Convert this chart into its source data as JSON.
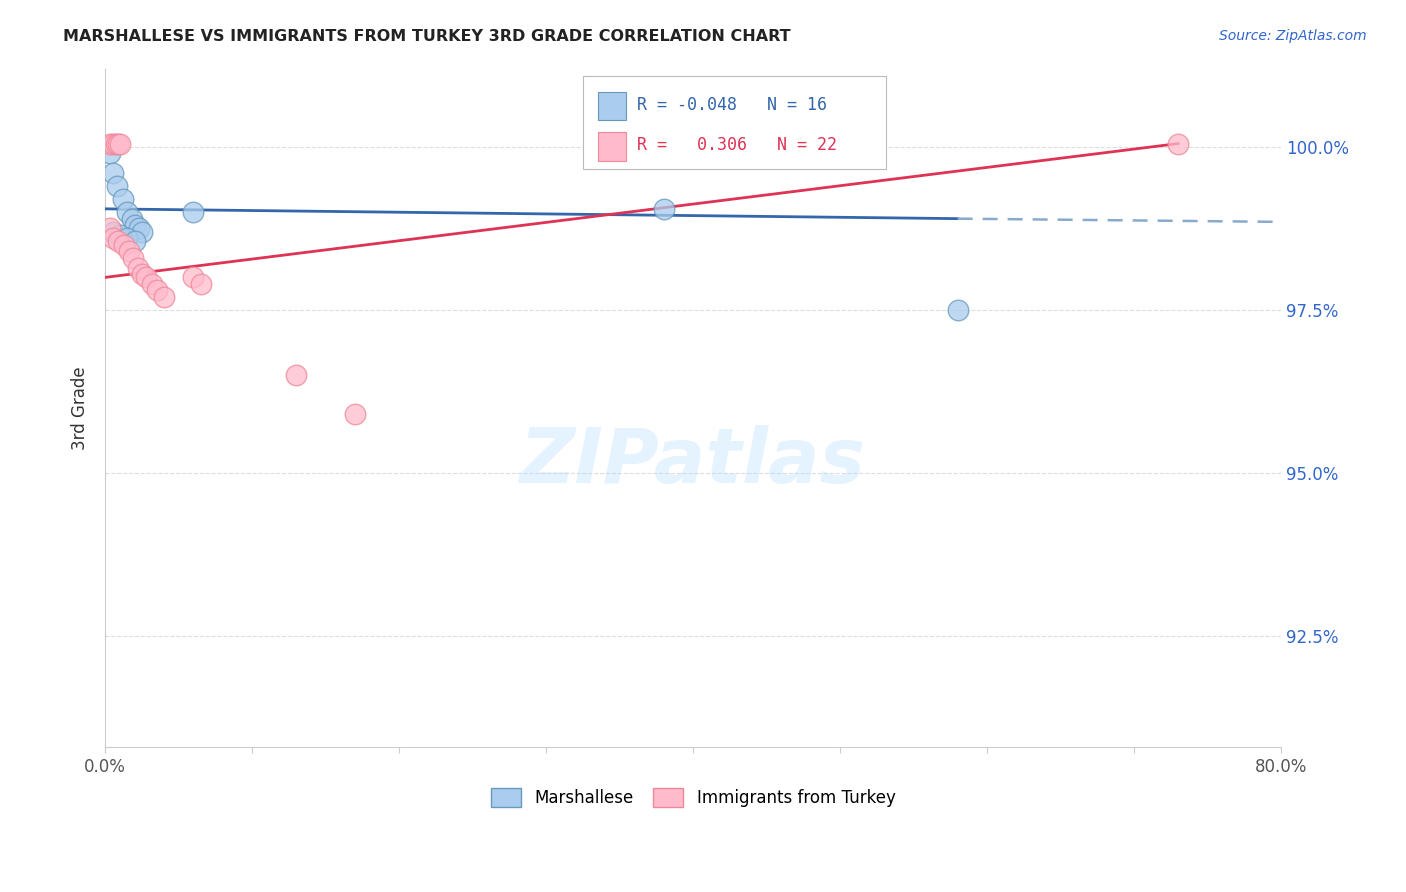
{
  "title": "MARSHALLESE VS IMMIGRANTS FROM TURKEY 3RD GRADE CORRELATION CHART",
  "source": "Source: ZipAtlas.com",
  "ylabel": "3rd Grade",
  "x_min": 0.0,
  "x_max": 0.8,
  "y_min": 0.908,
  "y_max": 1.012,
  "x_tick_positions": [
    0.0,
    0.1,
    0.2,
    0.3,
    0.4,
    0.5,
    0.6,
    0.7,
    0.8
  ],
  "x_tick_labels": [
    "0.0%",
    "",
    "",
    "",
    "",
    "",
    "",
    "",
    "80.0%"
  ],
  "y_tick_positions": [
    0.925,
    0.95,
    0.975,
    1.0
  ],
  "y_tick_labels_right": [
    "92.5%",
    "95.0%",
    "97.5%",
    "100.0%"
  ],
  "blue_color": "#AACCEE",
  "pink_color": "#FFBBCC",
  "blue_edge": "#6699BB",
  "pink_edge": "#EE8899",
  "trend_blue_solid": "#3366AA",
  "trend_blue_dash": "#88AACC",
  "trend_pink": "#DD3355",
  "legend_r_blue": "-0.048",
  "legend_n_blue": "16",
  "legend_r_pink": "0.306",
  "legend_n_pink": "22",
  "blue_scatter_x": [
    0.003,
    0.005,
    0.008,
    0.012,
    0.015,
    0.018,
    0.02,
    0.023,
    0.025,
    0.06,
    0.005,
    0.01,
    0.015,
    0.02,
    0.38,
    0.58
  ],
  "blue_scatter_y": [
    0.999,
    0.996,
    0.994,
    0.992,
    0.99,
    0.989,
    0.988,
    0.9875,
    0.987,
    0.99,
    0.987,
    0.9865,
    0.986,
    0.9855,
    0.9905,
    0.975
  ],
  "pink_scatter_x": [
    0.003,
    0.005,
    0.007,
    0.009,
    0.01,
    0.003,
    0.005,
    0.009,
    0.013,
    0.016,
    0.019,
    0.022,
    0.025,
    0.028,
    0.032,
    0.035,
    0.04,
    0.06,
    0.065,
    0.13,
    0.17,
    0.73
  ],
  "pink_scatter_y": [
    1.0005,
    1.0005,
    1.0005,
    1.0005,
    1.0005,
    0.9875,
    0.986,
    0.9855,
    0.985,
    0.984,
    0.983,
    0.9815,
    0.9805,
    0.98,
    0.979,
    0.978,
    0.977,
    0.98,
    0.979,
    0.965,
    0.959,
    1.0005
  ],
  "watermark_text": "ZIPatlas",
  "grid_color": "#DDDDDD",
  "axis_color": "#CCCCCC"
}
